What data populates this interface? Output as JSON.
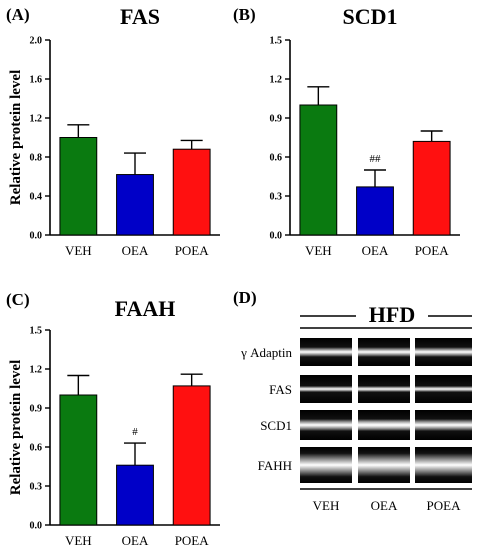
{
  "chart_data": [
    {
      "panel": "(A)",
      "type": "bar",
      "title": "FAS",
      "ylabel": "Relative protein level",
      "categories": [
        "VEH",
        "OEA",
        "POEA"
      ],
      "values": [
        1.0,
        0.62,
        0.88
      ],
      "errors": [
        0.13,
        0.22,
        0.09
      ],
      "colors": [
        "#0a7a10",
        "#0000c8",
        "#ff1010"
      ],
      "annotations": [
        "",
        "",
        ""
      ],
      "ylim": [
        0,
        2.0
      ],
      "yticks": [
        "0.0",
        "0.4",
        "0.8",
        "1.2",
        "1.6",
        "2.0"
      ]
    },
    {
      "panel": "(B)",
      "type": "bar",
      "title": "SCD1",
      "ylabel": "",
      "categories": [
        "VEH",
        "OEA",
        "POEA"
      ],
      "values": [
        1.0,
        0.37,
        0.72
      ],
      "errors": [
        0.14,
        0.13,
        0.08
      ],
      "colors": [
        "#0a7a10",
        "#0000c8",
        "#ff1010"
      ],
      "annotations": [
        "",
        "##",
        ""
      ],
      "ylim": [
        0,
        1.5
      ],
      "yticks": [
        "0.0",
        "0.3",
        "0.6",
        "0.9",
        "1.2",
        "1.5"
      ]
    },
    {
      "panel": "(C)",
      "type": "bar",
      "title": "FAAH",
      "ylabel": "Relative protein level",
      "categories": [
        "VEH",
        "OEA",
        "POEA"
      ],
      "values": [
        1.0,
        0.46,
        1.07
      ],
      "errors": [
        0.15,
        0.17,
        0.09
      ],
      "colors": [
        "#0a7a10",
        "#0000c8",
        "#ff1010"
      ],
      "annotations": [
        "",
        "#",
        ""
      ],
      "ylim": [
        0,
        1.5
      ],
      "yticks": [
        "0.0",
        "0.3",
        "0.6",
        "0.9",
        "1.2",
        "1.5"
      ]
    }
  ],
  "blot": {
    "panel": "(D)",
    "title": "HFD",
    "rows": [
      "γ Adaptin",
      "FAS",
      "SCD1",
      "FAHH"
    ],
    "lanes": [
      "VEH",
      "OEA",
      "POEA"
    ]
  }
}
